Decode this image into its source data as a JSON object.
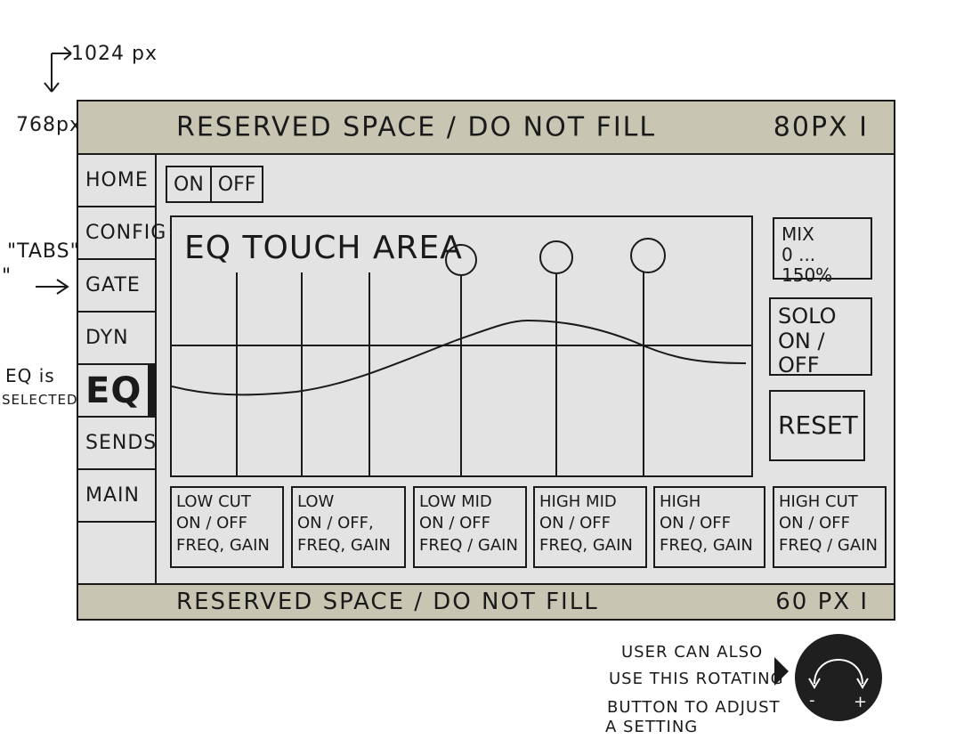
{
  "annotations": {
    "width_label": "1024 px",
    "height_label": "768px",
    "tabs_label": "\"TABS\"",
    "tabs_quote": "\"",
    "eq_selected_line1": "EQ is",
    "eq_selected_line2": "SELECTED",
    "knob_note_lines": [
      "USER CAN ALSO",
      "USE THIS ROTATING",
      "BUTTON TO ADJUST",
      "A SETTING"
    ]
  },
  "top_reserved": {
    "label": "RESERVED SPACE / DO NOT FILL",
    "size": "80PX",
    "size_marker": "I"
  },
  "bottom_reserved": {
    "label": "RESERVED SPACE / DO NOT FILL",
    "size": "60 PX",
    "size_marker": "I"
  },
  "tabs": [
    "HOME",
    "CONFIG",
    "GATE",
    "DYN",
    "EQ",
    "SENDS",
    "MAIN"
  ],
  "selected_tab": "EQ",
  "onoff": {
    "on": "ON",
    "off": "OFF"
  },
  "eq_area": {
    "title": "EQ TOUCH AREA"
  },
  "right_panel": {
    "mix_line1": "MIX",
    "mix_line2": "0 ... 150%",
    "solo_line1": "SOLO",
    "solo_line2": "ON / OFF",
    "reset": "RESET"
  },
  "bands": [
    {
      "name": "LOW CUT",
      "toggle": "ON / OFF",
      "params": "FREQ, GAIN"
    },
    {
      "name": "LOW",
      "toggle": "ON / OFF,",
      "params": "FREQ, GAIN"
    },
    {
      "name": "LOW MID",
      "toggle": "ON / OFF",
      "params": "FREQ / GAIN"
    },
    {
      "name": "HIGH MID",
      "toggle": "ON / OFF",
      "params": "FREQ, GAIN"
    },
    {
      "name": "HIGH",
      "toggle": "ON / OFF",
      "params": "FREQ, GAIN"
    },
    {
      "name": "HIGH CUT",
      "toggle": "ON / OFF",
      "params": "FREQ / GAIN"
    }
  ],
  "knob": {
    "minus": "-",
    "plus": "+"
  },
  "colors": {
    "reserved": "#c8c6b2",
    "panel": "#e3e3e3",
    "ink": "#1a1a1a",
    "knob": "#1f1f1f"
  }
}
